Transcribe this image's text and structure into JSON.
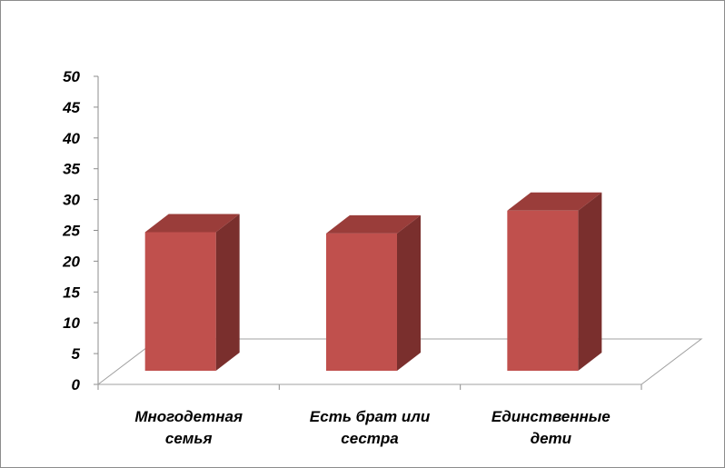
{
  "chart_data": {
    "type": "bar",
    "categories": [
      [
        "Многодетная",
        "семья"
      ],
      [
        "Есть брат  или",
        "сестра"
      ],
      [
        "Единственные",
        "дети"
      ]
    ],
    "values": [
      25,
      24.8,
      28.5
    ],
    "ylim": [
      0,
      50
    ],
    "yticks": [
      0,
      5,
      10,
      15,
      20,
      25,
      30,
      35,
      40,
      45,
      50
    ],
    "grid": false,
    "colors": {
      "front": "#c0504d",
      "top": "#9a3d3a",
      "side": "#7a2f2d"
    }
  }
}
